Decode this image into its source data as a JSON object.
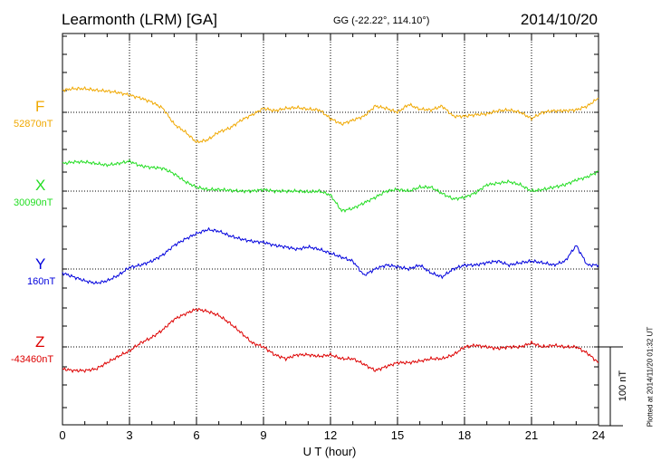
{
  "header": {
    "station": "Learmonth (LRM)  [GA]",
    "coords": "GG (-22.22°, 114.10°)",
    "date": "2014/10/20"
  },
  "footer": {
    "plotted": "Plotted at 2014/11/20 01:32 UT"
  },
  "chart_data": {
    "type": "line",
    "title": "Learmonth (LRM)  [GA]",
    "xlabel": "U T (hour)",
    "xlim": [
      0,
      24
    ],
    "xticks": [
      "0",
      "3",
      "6",
      "9",
      "12",
      "15",
      "18",
      "21",
      "24"
    ],
    "grid": true,
    "scale_bar": "100 nT",
    "scale_bar_nT": 100,
    "series": [
      {
        "name": "F",
        "baseline_label": "52870nT",
        "baseline_nT": 52870,
        "color": "#f0a800",
        "x": [
          0,
          0.5,
          1,
          1.5,
          2,
          2.5,
          3,
          3.5,
          4,
          4.5,
          5,
          5.5,
          6,
          6.5,
          7,
          7.5,
          8,
          8.5,
          9,
          9.5,
          10,
          10.5,
          11,
          11.5,
          12,
          12.5,
          13,
          13.5,
          14,
          14.5,
          15,
          15.5,
          16,
          16.5,
          17,
          17.5,
          18,
          18.5,
          19,
          19.5,
          20,
          20.5,
          21,
          21.5,
          22,
          22.5,
          23,
          23.5,
          24
        ],
        "y": [
          28,
          30,
          30,
          28,
          27,
          25,
          22,
          18,
          13,
          5,
          -15,
          -25,
          -38,
          -35,
          -25,
          -20,
          -10,
          -3,
          5,
          2,
          5,
          6,
          4,
          3,
          -8,
          -15,
          -10,
          -5,
          8,
          5,
          0,
          10,
          4,
          3,
          8,
          -5,
          -5,
          -3,
          -2,
          2,
          3,
          0,
          -8,
          0,
          2,
          2,
          3,
          8,
          18
        ]
      },
      {
        "name": "X",
        "baseline_label": "30090nT",
        "baseline_nT": 30090,
        "color": "#22dd22",
        "x": [
          0,
          0.5,
          1,
          1.5,
          2,
          2.5,
          3,
          3.5,
          4,
          4.5,
          5,
          5.5,
          6,
          6.5,
          7,
          7.5,
          8,
          8.5,
          9,
          9.5,
          10,
          10.5,
          11,
          11.5,
          12,
          12.5,
          13,
          13.5,
          14,
          14.5,
          15,
          15.5,
          16,
          16.5,
          17,
          17.5,
          18,
          18.5,
          19,
          19.5,
          20,
          20.5,
          21,
          21.5,
          22,
          22.5,
          23,
          23.5,
          24
        ],
        "y": [
          35,
          37,
          37,
          35,
          33,
          35,
          38,
          32,
          30,
          29,
          22,
          12,
          5,
          2,
          2,
          1,
          0,
          0,
          2,
          0,
          0,
          0,
          -1,
          0,
          -5,
          -25,
          -22,
          -15,
          -8,
          0,
          2,
          0,
          5,
          5,
          -3,
          -10,
          -8,
          -2,
          8,
          10,
          12,
          8,
          0,
          2,
          5,
          8,
          14,
          18,
          25
        ]
      },
      {
        "name": "Y",
        "baseline_label": "160nT",
        "baseline_nT": 160,
        "color": "#0000dd",
        "x": [
          0,
          0.5,
          1,
          1.5,
          2,
          2.5,
          3,
          3.5,
          4,
          4.5,
          5,
          5.5,
          6,
          6.5,
          7,
          7.5,
          8,
          8.5,
          9,
          9.5,
          10,
          10.5,
          11,
          11.5,
          12,
          12.5,
          13,
          13.5,
          14,
          14.5,
          15,
          15.5,
          16,
          16.5,
          17,
          17.5,
          18,
          18.5,
          19,
          19.5,
          20,
          20.5,
          21,
          21.5,
          22,
          22.5,
          23,
          23.5,
          24
        ],
        "y": [
          -5,
          -10,
          -15,
          -18,
          -15,
          -8,
          2,
          5,
          10,
          18,
          30,
          38,
          45,
          50,
          48,
          42,
          38,
          35,
          34,
          30,
          28,
          25,
          28,
          25,
          20,
          15,
          10,
          -8,
          0,
          5,
          3,
          0,
          5,
          -5,
          -10,
          0,
          5,
          5,
          8,
          10,
          5,
          8,
          10,
          8,
          5,
          10,
          30,
          5,
          5
        ]
      },
      {
        "name": "Z",
        "baseline_label": "-43460nT",
        "baseline_nT": -43460,
        "color": "#dd0000",
        "x": [
          0,
          0.5,
          1,
          1.5,
          2,
          2.5,
          3,
          3.5,
          4,
          4.5,
          5,
          5.5,
          6,
          6.5,
          7,
          7.5,
          8,
          8.5,
          9,
          9.5,
          10,
          10.5,
          11,
          11.5,
          12,
          12.5,
          13,
          13.5,
          14,
          14.5,
          15,
          15.5,
          16,
          16.5,
          17,
          17.5,
          18,
          18.5,
          19,
          19.5,
          20,
          20.5,
          21,
          21.5,
          22,
          22.5,
          23,
          23.5,
          24
        ],
        "y": [
          -28,
          -30,
          -30,
          -28,
          -20,
          -12,
          -5,
          5,
          12,
          22,
          35,
          42,
          48,
          45,
          40,
          30,
          18,
          5,
          0,
          -10,
          -15,
          -10,
          -10,
          -12,
          -10,
          -15,
          -15,
          -22,
          -30,
          -25,
          -20,
          -20,
          -18,
          -15,
          -15,
          -10,
          0,
          2,
          0,
          -2,
          0,
          0,
          5,
          0,
          2,
          0,
          0,
          -8,
          -20
        ]
      }
    ]
  }
}
